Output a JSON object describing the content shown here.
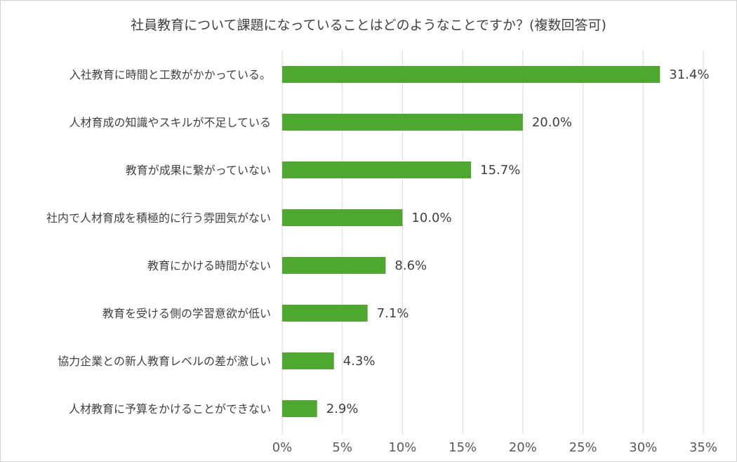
{
  "colors": {
    "bar": "#4ea72e",
    "grid": "#d9d9d9",
    "text": "#404040"
  },
  "chart_data": {
    "type": "bar",
    "orientation": "horizontal",
    "title": "社員教育について課題になっていることはどのようなことですか？(複数回答可)",
    "categories": [
      "入社教育に時間と工数がかかっている。",
      "人材育成の知識やスキルが不足している",
      "教育が成果に繋がっていない",
      "社内で人材育成を積極的に行う雰囲気がない",
      "教育にかける時間がない",
      "教育を受ける側の学習意欲が低い",
      "協力企業との新人教育レベルの差が激しい",
      "人材教育に予算をかけることができない"
    ],
    "values": [
      31.4,
      20.0,
      15.7,
      10.0,
      8.6,
      7.1,
      4.3,
      2.9
    ],
    "value_labels": [
      "31.4%",
      "20.0%",
      "15.7%",
      "10.0%",
      "8.6%",
      "7.1%",
      "4.3%",
      "2.9%"
    ],
    "xlim": [
      0,
      35
    ],
    "xticks": [
      0,
      5,
      10,
      15,
      20,
      25,
      30,
      35
    ],
    "xtick_labels": [
      "0%",
      "5%",
      "10%",
      "15%",
      "20%",
      "25%",
      "30%",
      "35%"
    ],
    "grid": "vertical",
    "legend": "none"
  }
}
